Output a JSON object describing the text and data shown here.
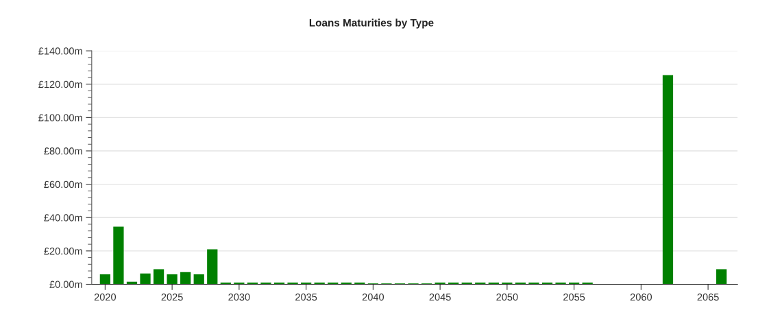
{
  "chart_data": {
    "type": "bar",
    "title": "Loans Maturities by Type",
    "x": [
      2020,
      2021,
      2022,
      2023,
      2024,
      2025,
      2026,
      2027,
      2028,
      2029,
      2030,
      2031,
      2032,
      2033,
      2034,
      2035,
      2036,
      2037,
      2038,
      2039,
      2040,
      2041,
      2042,
      2043,
      2044,
      2045,
      2046,
      2047,
      2048,
      2049,
      2050,
      2051,
      2052,
      2053,
      2054,
      2055,
      2056,
      2062,
      2066
    ],
    "values": [
      6,
      34.5,
      1.5,
      6.5,
      9,
      6,
      7.3,
      6,
      21,
      1,
      1,
      1,
      1,
      1,
      1,
      1,
      1,
      1,
      1,
      1,
      0.5,
      0.5,
      0.5,
      0.5,
      0.5,
      1,
      1,
      1,
      1,
      1,
      1,
      1,
      1,
      1,
      1,
      1,
      1,
      125.5,
      9
    ],
    "color": "#008000",
    "xlim": [
      2019,
      2067.2
    ],
    "xticks": [
      2020,
      2025,
      2030,
      2035,
      2040,
      2045,
      2050,
      2055,
      2060,
      2065
    ],
    "ylim": [
      0,
      140
    ],
    "yticks": [
      {
        "value": 0,
        "label": "£0.00m"
      },
      {
        "value": 20,
        "label": "£20.00m"
      },
      {
        "value": 40,
        "label": "£40.00m"
      },
      {
        "value": 60,
        "label": "£60.00m"
      },
      {
        "value": 80,
        "label": "£80.00m"
      },
      {
        "value": 100,
        "label": "£100.00m"
      },
      {
        "value": 120,
        "label": "£120.00m"
      },
      {
        "value": 140,
        "label": "£140.00m"
      }
    ],
    "grid": "y",
    "legend": false
  }
}
